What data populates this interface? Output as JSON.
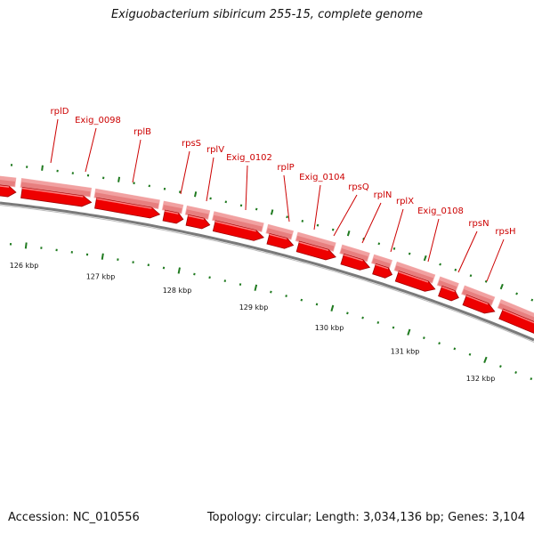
{
  "title": "Exiguobacterium sibiricum 255-15, complete genome",
  "accession": "Accession: NC_010556",
  "summary": "Topology: circular; Length: 3,034,136 bp; Genes: 3,104",
  "genes": [
    {
      "label": "rplD",
      "icon": "arrow-right-red"
    },
    {
      "label": "Exig_0098",
      "icon": "arrow-right-red"
    },
    {
      "label": "rplB",
      "icon": "arrow-right-red"
    },
    {
      "label": "rpsS",
      "icon": "arrow-right-red"
    },
    {
      "label": "rplV",
      "icon": "arrow-right-red"
    },
    {
      "label": "Exig_0102",
      "icon": "arrow-right-red"
    },
    {
      "label": "rplP",
      "icon": "arrow-right-red"
    },
    {
      "label": "Exig_0104",
      "icon": "arrow-right-red"
    },
    {
      "label": "rpsQ",
      "icon": "arrow-right-red"
    },
    {
      "label": "rplN",
      "icon": "arrow-right-red"
    },
    {
      "label": "rplX",
      "icon": "arrow-right-red"
    },
    {
      "label": "Exig_0108",
      "icon": "arrow-right-red"
    },
    {
      "label": "rpsN",
      "icon": "arrow-right-red"
    },
    {
      "label": "rpsH",
      "icon": "arrow-right-red"
    }
  ],
  "ticks": [
    "126 kbp",
    "127 kbp",
    "128 kbp",
    "129 kbp",
    "130 kbp",
    "131 kbp",
    "132 kbp"
  ],
  "colors": {
    "gene_label": "#cc0000",
    "cds_arrow": "#ee0000",
    "cds_band": "#e88080",
    "backbone": "#777777",
    "tick": "#1f7a1f",
    "text": "#111111"
  }
}
